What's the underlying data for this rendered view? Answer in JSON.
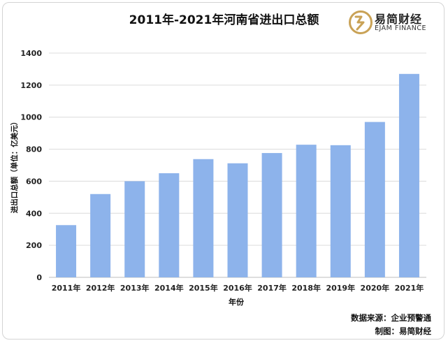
{
  "brand": {
    "name": "易简财经",
    "subtitle": "EJAM FINANCE",
    "logo_icon": "ej-monogram-icon",
    "logo_color": "#c9a256"
  },
  "footer": {
    "source": "数据来源：企业预警通",
    "maker": "制图：易简财经"
  },
  "chart_data": {
    "type": "bar",
    "title": "2011年-2021年河南省进出口总额",
    "xlabel": "年份",
    "ylabel": "进出口总额（单位：亿美元）",
    "categories": [
      "2011年",
      "2012年",
      "2013年",
      "2014年",
      "2015年",
      "2016年",
      "2017年",
      "2018年",
      "2019年",
      "2020年",
      "2021年"
    ],
    "values": [
      326,
      520,
      600,
      650,
      738,
      712,
      776,
      828,
      825,
      970,
      1270
    ],
    "ylim": [
      0,
      1400
    ],
    "yticks": [
      0,
      200,
      400,
      600,
      800,
      1000,
      1200,
      1400
    ],
    "grid": true,
    "bar_color": "#8db3eb",
    "grid_color": "#dcdcdc"
  }
}
